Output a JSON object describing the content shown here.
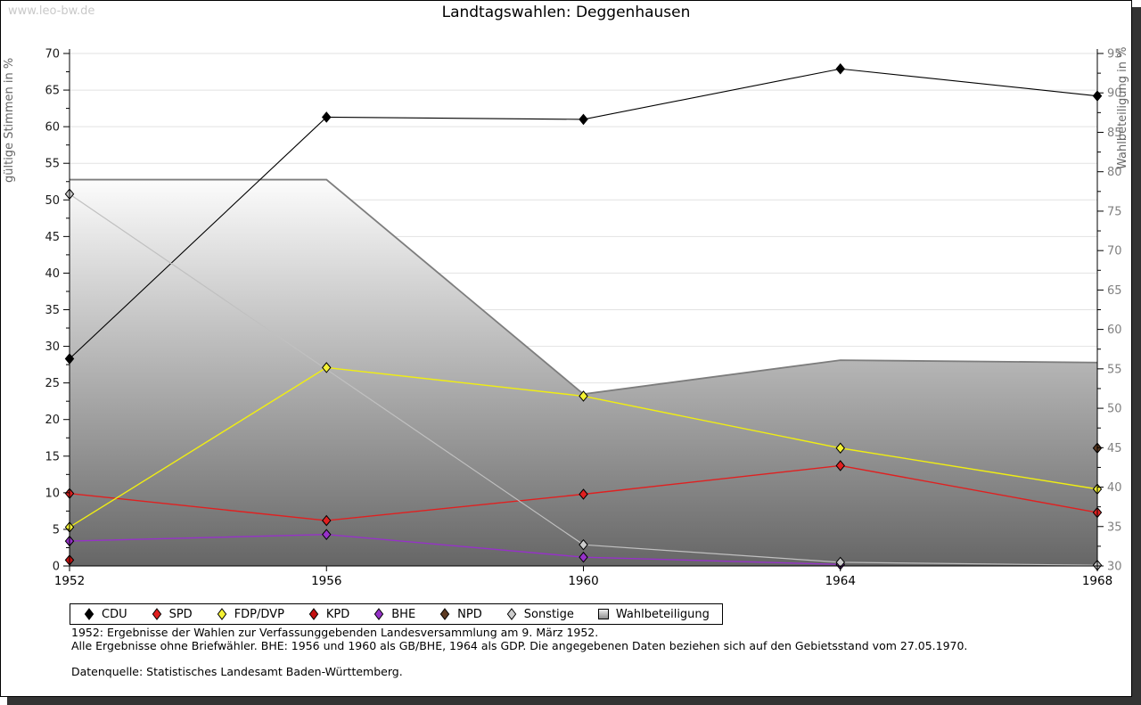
{
  "watermark": "www.leo-bw.de",
  "title": "Landtagswahlen: Deggenhausen",
  "footnotes": {
    "line1": "1952: Ergebnisse der Wahlen zur Verfassunggebenden Landesversammlung am 9. März 1952.",
    "line2": "Alle Ergebnisse ohne Briefwähler. BHE: 1956 und 1960 als GB/BHE, 1964 als GDP. Die angegebenen Daten beziehen sich auf den Gebietsstand vom 27.05.1970.",
    "source": "Datenquelle: Statistisches Landesamt Baden-Württemberg."
  },
  "chart_data": {
    "type": "line",
    "title": "Landtagswahlen: Deggenhausen",
    "x": [
      1952,
      1956,
      1960,
      1964,
      1968
    ],
    "ylabel_left": "gültige Stimmen in %",
    "ylabel_right": "Wahlbeteiligung in %",
    "ylim_left": [
      0,
      70
    ],
    "ylim_right": [
      30,
      95
    ],
    "ytick_step": 5,
    "grid": true,
    "legend_position": "bottom",
    "series": [
      {
        "name": "CDU",
        "color": "#000000",
        "marker_fill": "#000000",
        "line_width": 1.1,
        "values": [
          28.3,
          61.3,
          61.0,
          67.9,
          64.2
        ]
      },
      {
        "name": "SPD",
        "color": "#e02020",
        "marker_fill": "#e02020",
        "line_width": 1.4,
        "values": [
          9.9,
          6.2,
          9.8,
          13.7,
          7.3
        ]
      },
      {
        "name": "FDP/DVP",
        "color": "#f0ee12",
        "marker_fill": "#f5f235",
        "line_width": 1.4,
        "values": [
          5.3,
          27.1,
          23.2,
          16.1,
          10.5
        ]
      },
      {
        "name": "KPD",
        "color": "#b50d0d",
        "marker_fill": "#c41111",
        "line_width": 1.4,
        "values": [
          0.8,
          null,
          null,
          null,
          null
        ]
      },
      {
        "name": "BHE",
        "color": "#9632c8",
        "marker_fill": "#9632c8",
        "line_width": 1.4,
        "values": [
          3.4,
          4.3,
          1.2,
          0.2,
          null
        ]
      },
      {
        "name": "NPD",
        "color": "#5e3b23",
        "marker_fill": "#5e3b23",
        "line_width": 1.4,
        "values": [
          null,
          null,
          null,
          null,
          16.1
        ]
      },
      {
        "name": "Sonstige",
        "color": "#c0c0c0",
        "marker_fill": "#cccccc",
        "line_width": 1.2,
        "values": [
          50.8,
          null,
          2.9,
          0.5,
          0.1
        ]
      }
    ],
    "area_series": {
      "name": "Wahlbeteiligung",
      "axis": "right",
      "values": [
        79.0,
        79.0,
        51.8,
        56.1,
        55.8
      ],
      "line_color": "#7d7d7d",
      "fill_top": "#fcfcfc",
      "fill_bottom": "#666666"
    },
    "colors": {
      "gridline": "#e2e2e2",
      "axis": "#000000",
      "left_tick_labels": "#1a1a1a",
      "right_tick_labels": "#808080",
      "axis_titles": "#666666"
    }
  }
}
